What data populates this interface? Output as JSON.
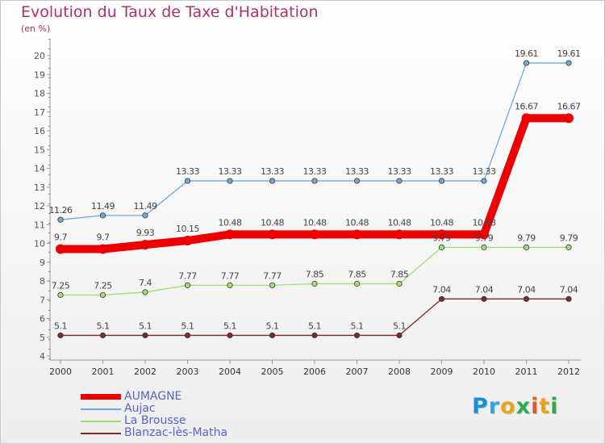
{
  "chart_data": {
    "type": "line",
    "title": "Evolution du Taux de Taxe d'Habitation",
    "ylabel": "(en %)",
    "ylim": [
      4,
      20
    ],
    "yticks": [
      4,
      5,
      6,
      7,
      8,
      9,
      10,
      11,
      12,
      13,
      14,
      15,
      16,
      17,
      18,
      19,
      20
    ],
    "grid": false,
    "legend_position": "bottom-left",
    "x": [
      "2000",
      "2001",
      "2002",
      "2003",
      "2004",
      "2005",
      "2006",
      "2007",
      "2008",
      "2009",
      "2010",
      "2011",
      "2012"
    ],
    "series": [
      {
        "name": "AUMAGNE",
        "color": "#ee0000",
        "values": [
          9.7,
          9.7,
          9.93,
          10.15,
          10.48,
          10.48,
          10.48,
          10.48,
          10.48,
          10.48,
          10.48,
          16.67,
          16.67
        ]
      },
      {
        "name": "Aujac",
        "color": "#6fa8dc",
        "values": [
          11.26,
          11.49,
          11.49,
          13.33,
          13.33,
          13.33,
          13.33,
          13.33,
          13.33,
          13.33,
          13.33,
          19.61,
          19.61
        ]
      },
      {
        "name": "La Brousse",
        "color": "#9fdf6f",
        "values": [
          7.25,
          7.25,
          7.4,
          7.77,
          7.77,
          7.77,
          7.85,
          7.85,
          7.85,
          9.79,
          9.79,
          9.79,
          9.79
        ]
      },
      {
        "name": "Blanzac-lès-Matha",
        "color": "#7a2a2a",
        "values": [
          5.1,
          5.1,
          5.1,
          5.1,
          5.1,
          5.1,
          5.1,
          5.1,
          5.1,
          7.04,
          7.04,
          7.04,
          7.04
        ]
      }
    ]
  },
  "brand": {
    "letters": [
      "P",
      "r",
      "o",
      "x",
      "i",
      "t",
      "i"
    ],
    "colors": [
      "#1a8fd6",
      "#3aa0e0",
      "#e8a31a",
      "#2fa84f",
      "#e35a2a",
      "#e8a31a",
      "#2fa84f"
    ]
  }
}
